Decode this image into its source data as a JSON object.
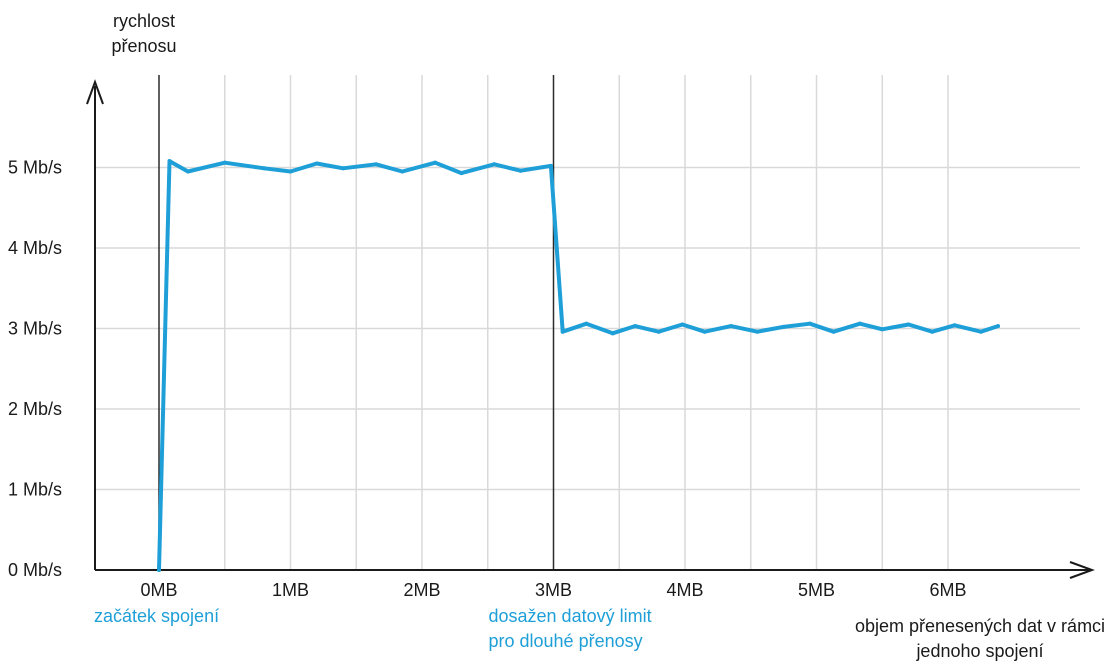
{
  "colors": {
    "series": "#1e9fd8",
    "grid": "#d9d9d9",
    "axis": "#1a1a1a",
    "marker_line": "#2b2b2b",
    "annotation": "#1e9fd8"
  },
  "chart_data": {
    "type": "line",
    "ylabel_lines": [
      "rychlost",
      "přenosu"
    ],
    "xlabel_lines": [
      "objem přenesených dat v rámci",
      "jednoho spojení"
    ],
    "y_ticks": [
      {
        "value": 0,
        "label": "0 Mb/s"
      },
      {
        "value": 1,
        "label": "1 Mb/s"
      },
      {
        "value": 2,
        "label": "2 Mb/s"
      },
      {
        "value": 3,
        "label": "3 Mb/s"
      },
      {
        "value": 4,
        "label": "4 Mb/s"
      },
      {
        "value": 5,
        "label": "5 Mb/s"
      }
    ],
    "x_ticks": [
      {
        "value": 0,
        "label": "0MB"
      },
      {
        "value": 1,
        "label": "1MB"
      },
      {
        "value": 2,
        "label": "2MB"
      },
      {
        "value": 3,
        "label": "3MB"
      },
      {
        "value": 4,
        "label": "4MB"
      },
      {
        "value": 5,
        "label": "5MB"
      },
      {
        "value": 6,
        "label": "6MB"
      }
    ],
    "xlim": [
      -0.5,
      7.0
    ],
    "ylim": [
      0,
      5.6
    ],
    "grid": true,
    "marker_lines_at": [
      0,
      3
    ],
    "annotations": [
      {
        "x": 0,
        "lines": [
          "začátek spojení"
        ]
      },
      {
        "x": 3,
        "lines": [
          "dosažen datový limit",
          "pro dlouhé přenosy"
        ]
      }
    ],
    "series": [
      {
        "x": [
          0.0,
          0.08,
          0.22,
          0.5,
          0.8,
          1.0,
          1.2,
          1.4,
          1.65,
          1.85,
          2.1,
          2.3,
          2.55,
          2.75,
          2.98,
          3.07,
          3.25,
          3.45,
          3.62,
          3.8,
          3.98,
          4.15,
          4.35,
          4.55,
          4.75,
          4.95,
          5.13,
          5.33,
          5.5,
          5.7,
          5.88,
          6.05,
          6.25,
          6.38
        ],
        "y": [
          0.0,
          5.08,
          4.95,
          5.06,
          4.99,
          4.95,
          5.05,
          4.99,
          5.04,
          4.95,
          5.06,
          4.93,
          5.04,
          4.96,
          5.02,
          2.96,
          3.06,
          2.94,
          3.03,
          2.96,
          3.05,
          2.96,
          3.03,
          2.96,
          3.02,
          3.06,
          2.96,
          3.06,
          2.99,
          3.05,
          2.96,
          3.04,
          2.96,
          3.03
        ]
      }
    ]
  }
}
